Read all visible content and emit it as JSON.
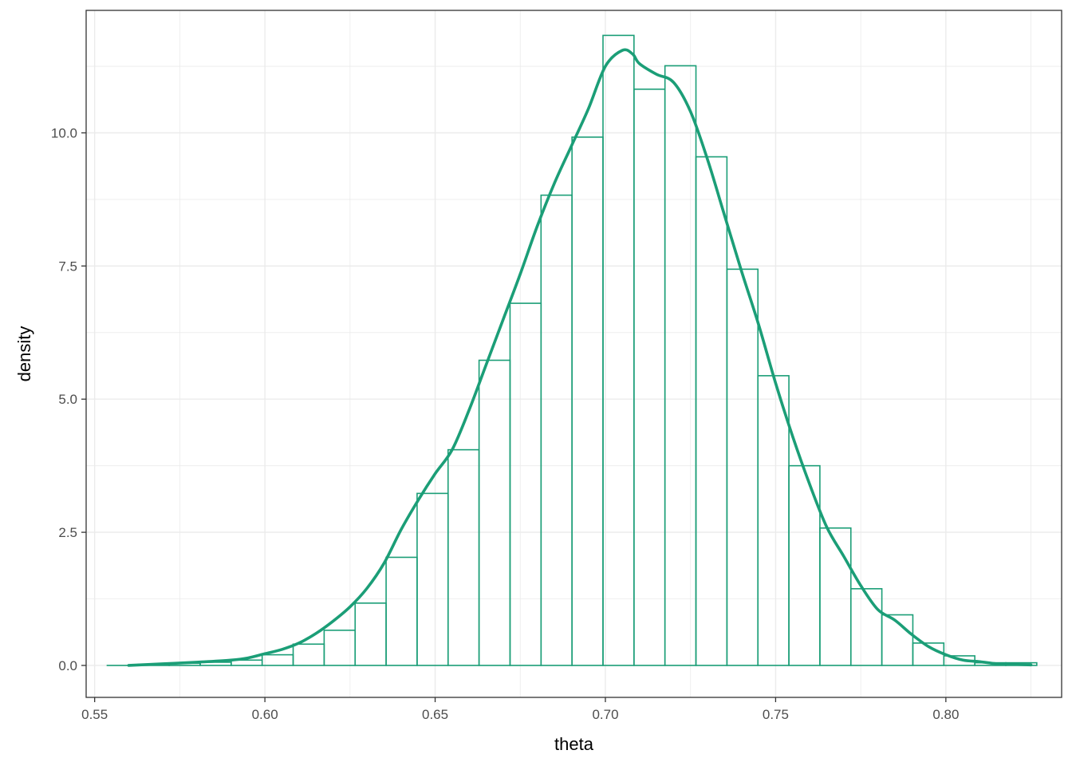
{
  "chart_data": {
    "type": "histogram",
    "xlabel": "theta",
    "ylabel": "density",
    "xlim": [
      0.5475,
      0.834
    ],
    "ylim": [
      -0.6,
      12.3
    ],
    "x_ticks": [
      0.55,
      0.6,
      0.65,
      0.7,
      0.75,
      0.8
    ],
    "x_tick_labels": [
      "0.55",
      "0.60",
      "0.65",
      "0.70",
      "0.75",
      "0.80"
    ],
    "y_ticks": [
      0,
      2.5,
      5,
      7.5,
      10
    ],
    "y_tick_labels": [
      "0.0",
      "2.5",
      "5.0",
      "7.5",
      "10.0"
    ],
    "grid": true,
    "colors": {
      "histogram": "#1b9e77",
      "density": "#1b9e77",
      "grid": "#ebebeb",
      "border": "#333333"
    },
    "histogram": {
      "bin_edges": [
        0.5537,
        0.5628,
        0.5719,
        0.581,
        0.5901,
        0.5992,
        0.6083,
        0.6174,
        0.6265,
        0.6356,
        0.6447,
        0.6538,
        0.6629,
        0.672,
        0.6811,
        0.6902,
        0.6993,
        0.7084,
        0.7175,
        0.7266,
        0.7357,
        0.7448,
        0.7539,
        0.763,
        0.7721,
        0.7812,
        0.7903,
        0.7994,
        0.8085,
        0.8176,
        0.8267
      ],
      "densities": [
        0.0,
        0.02,
        0.04,
        0.06,
        0.1,
        0.2,
        0.4,
        0.66,
        1.17,
        2.03,
        3.23,
        4.05,
        5.73,
        6.8,
        8.83,
        9.92,
        11.83,
        10.82,
        11.26,
        9.55,
        7.44,
        5.44,
        3.75,
        2.58,
        1.44,
        0.95,
        0.42,
        0.18,
        0.05,
        0.05
      ]
    },
    "density_curve": {
      "x": [
        0.56,
        0.57,
        0.58,
        0.59,
        0.595,
        0.6,
        0.605,
        0.61,
        0.615,
        0.62,
        0.625,
        0.63,
        0.635,
        0.64,
        0.645,
        0.65,
        0.655,
        0.66,
        0.665,
        0.67,
        0.675,
        0.68,
        0.685,
        0.69,
        0.695,
        0.7,
        0.705,
        0.708,
        0.71,
        0.715,
        0.72,
        0.725,
        0.73,
        0.735,
        0.74,
        0.745,
        0.75,
        0.755,
        0.76,
        0.765,
        0.77,
        0.775,
        0.78,
        0.785,
        0.79,
        0.795,
        0.8,
        0.805,
        0.81,
        0.815,
        0.82,
        0.825
      ],
      "y": [
        0.0,
        0.03,
        0.06,
        0.1,
        0.14,
        0.22,
        0.3,
        0.42,
        0.6,
        0.83,
        1.1,
        1.45,
        1.92,
        2.55,
        3.1,
        3.6,
        4.05,
        4.8,
        5.65,
        6.5,
        7.35,
        8.25,
        9.05,
        9.75,
        10.45,
        11.25,
        11.55,
        11.48,
        11.3,
        11.1,
        10.95,
        10.4,
        9.5,
        8.45,
        7.4,
        6.4,
        5.3,
        4.3,
        3.4,
        2.6,
        2.05,
        1.5,
        1.05,
        0.85,
        0.58,
        0.35,
        0.2,
        0.1,
        0.07,
        0.03,
        0.02,
        0.01
      ]
    }
  }
}
